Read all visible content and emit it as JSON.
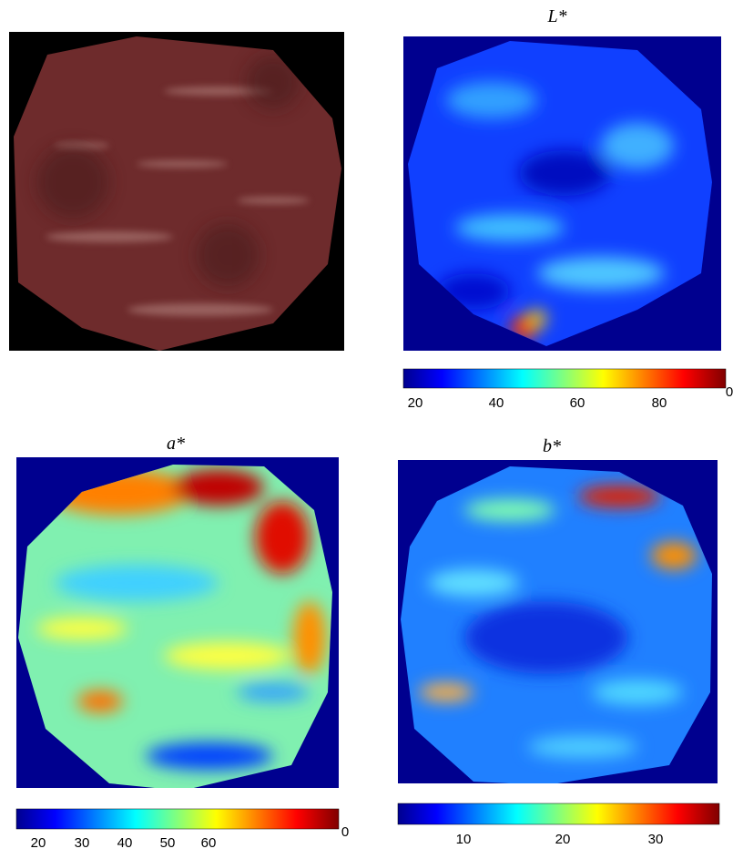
{
  "panels": [
    {
      "title": "L*",
      "colorbar": {
        "ticks": [
          20,
          40,
          60,
          80
        ],
        "clipped_label": "0"
      }
    },
    {
      "title": "a*",
      "colorbar": {
        "ticks": [
          20,
          30,
          40,
          50,
          60
        ],
        "clipped_label": "0"
      }
    },
    {
      "title": "b*",
      "colorbar": {
        "ticks": [
          10,
          20,
          30
        ]
      }
    }
  ]
}
